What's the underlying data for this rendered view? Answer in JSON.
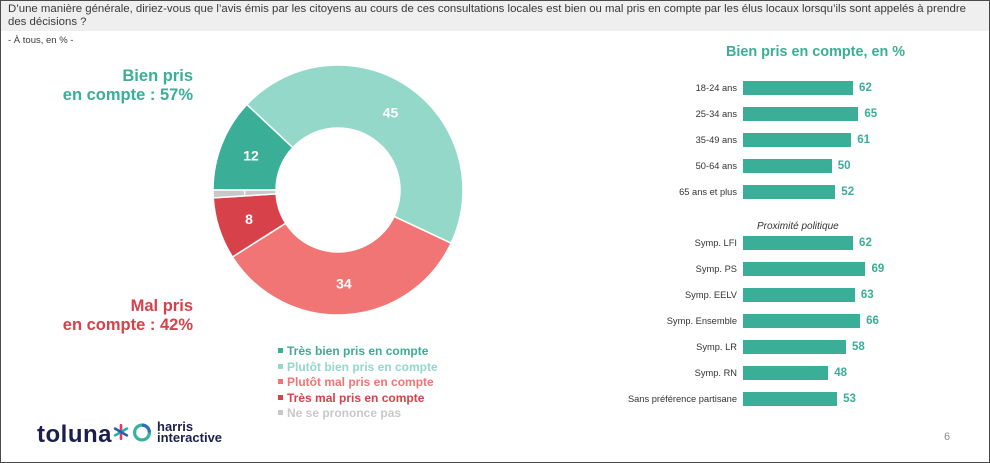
{
  "header": {
    "question_line1": "D’une manière générale, diriez-vous que l’avis émis par les citoyens au cours de ces consultations locales est bien ou mal pris en compte par les élus locaux lorsqu’ils sont appelés à prendre",
    "question_line2": "des décisions ?",
    "base": "- À tous, en % -"
  },
  "summary": {
    "positive": {
      "line1": "Bien pris",
      "line2": "en compte : 57%"
    },
    "negative": {
      "line1": "Mal pris",
      "line2": "en compte : 42%"
    }
  },
  "chart_data": [
    {
      "type": "pie",
      "donut": true,
      "categories": [
        "Très bien pris en compte",
        "Plutôt bien pris en compte",
        "Plutôt mal pris en compte",
        "Très mal pris en compte",
        "Ne se prononce pas"
      ],
      "values": [
        12,
        45,
        34,
        8,
        1
      ],
      "colors": [
        "#3aae96",
        "#93d8c8",
        "#f27575",
        "#d6414a",
        "#c8c8c8"
      ],
      "legend": "bottom"
    },
    {
      "type": "bar",
      "orientation": "horizontal",
      "title": "Bien pris en compte, en %",
      "xlim": [
        0,
        100
      ],
      "color": "#3aae96",
      "groups": [
        {
          "categories": [
            "18-24 ans",
            "25-34 ans",
            "35-49 ans",
            "50-64 ans",
            "65 ans et plus"
          ],
          "values": [
            62,
            65,
            61,
            50,
            52
          ]
        },
        {
          "label": "Proximité politique",
          "categories": [
            "Symp. LFI",
            "Symp. PS",
            "Symp. EELV",
            "Symp. Ensemble",
            "Symp. LR",
            "Symp. RN",
            "Sans préférence partisane"
          ],
          "values": [
            62,
            69,
            63,
            66,
            58,
            48,
            53
          ]
        }
      ]
    }
  ],
  "footer": {
    "logo_toluna": "toluna",
    "logo_harris_line1": "harris",
    "logo_harris_line2": "interactive",
    "page_number": "6"
  }
}
